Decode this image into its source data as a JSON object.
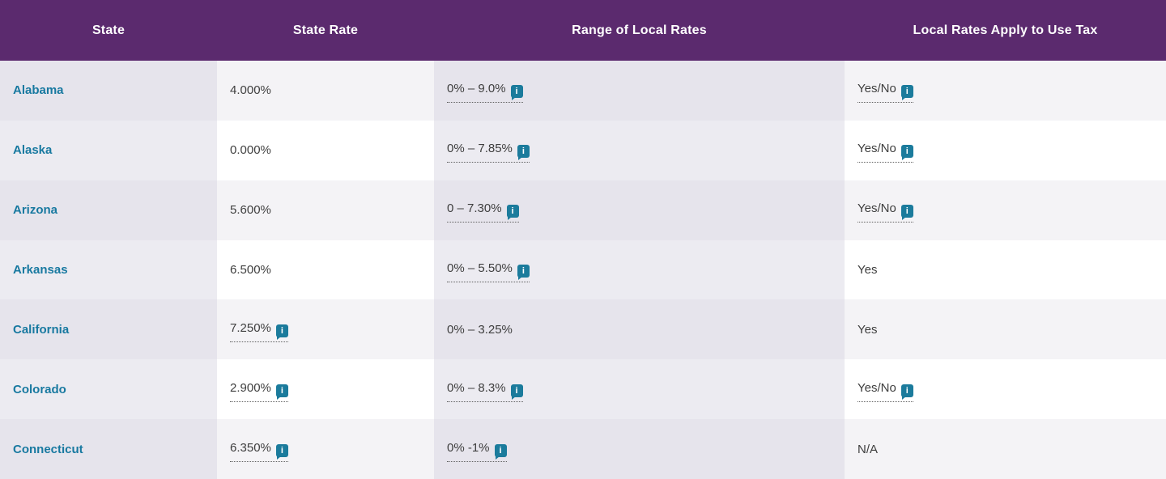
{
  "colors": {
    "header_bg": "#5b2a6e",
    "header_text": "#ffffff",
    "state_link": "#1879a0",
    "info_icon_bg": "#1b7b9c",
    "body_text": "#3e3e3e",
    "tinted_cell_odd_row": "#e6e4ec",
    "plain_cell_odd_row": "#f4f3f6",
    "tinted_cell_even_row": "#ecebf1",
    "plain_cell_even_row": "#ffffff"
  },
  "icons": {
    "info_glyph": "i"
  },
  "table": {
    "columns": [
      {
        "label": "State"
      },
      {
        "label": "State Rate"
      },
      {
        "label": "Range of Local Rates"
      },
      {
        "label": "Local Rates Apply to Use Tax"
      }
    ],
    "rows": [
      {
        "state": "Alabama",
        "state_rate": "4.000%",
        "local_range": "0% – 9.0%",
        "use_tax": "Yes/No"
      },
      {
        "state": "Alaska",
        "state_rate": "0.000%",
        "local_range": "0% – 7.85%",
        "use_tax": "Yes/No"
      },
      {
        "state": "Arizona",
        "state_rate": "5.600%",
        "local_range": "0 – 7.30%",
        "use_tax": "Yes/No"
      },
      {
        "state": "Arkansas",
        "state_rate": "6.500%",
        "local_range": "0% – 5.50%",
        "use_tax": "Yes"
      },
      {
        "state": "California",
        "state_rate": "7.250%",
        "local_range": "0% – 3.25%",
        "use_tax": "Yes"
      },
      {
        "state": "Colorado",
        "state_rate": "2.900%",
        "local_range": "0% – 8.3%",
        "use_tax": "Yes/No"
      },
      {
        "state": "Connecticut",
        "state_rate": "6.350%",
        "local_range": "0% -1%",
        "use_tax": "N/A"
      }
    ]
  }
}
